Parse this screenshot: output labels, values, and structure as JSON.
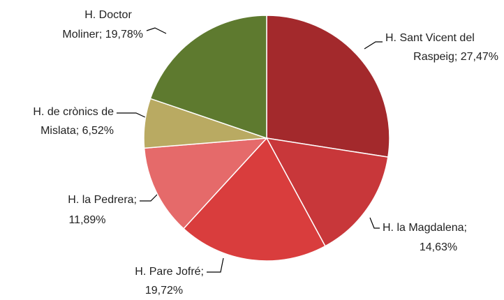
{
  "chart_data": {
    "type": "pie",
    "labels": [
      [
        "H. Sant Vicent del",
        "Raspeig; 27,47%"
      ],
      [
        "H. la Magdalena;",
        "14,63%"
      ],
      [
        "H. Pare Jofré;",
        "19,72%"
      ],
      [
        "H. la Pedrera;",
        "11,89%"
      ],
      [
        "H. de crònics de",
        "Mislata; 6,52%"
      ],
      [
        "H. Doctor",
        "Moliner; 19,78%"
      ]
    ],
    "values": [
      27.47,
      14.63,
      19.72,
      11.89,
      6.52,
      19.78
    ],
    "colors": [
      "#a3292c",
      "#c8373a",
      "#d93d3d",
      "#e56a6a",
      "#b9aa62",
      "#5e7a2f"
    ]
  }
}
